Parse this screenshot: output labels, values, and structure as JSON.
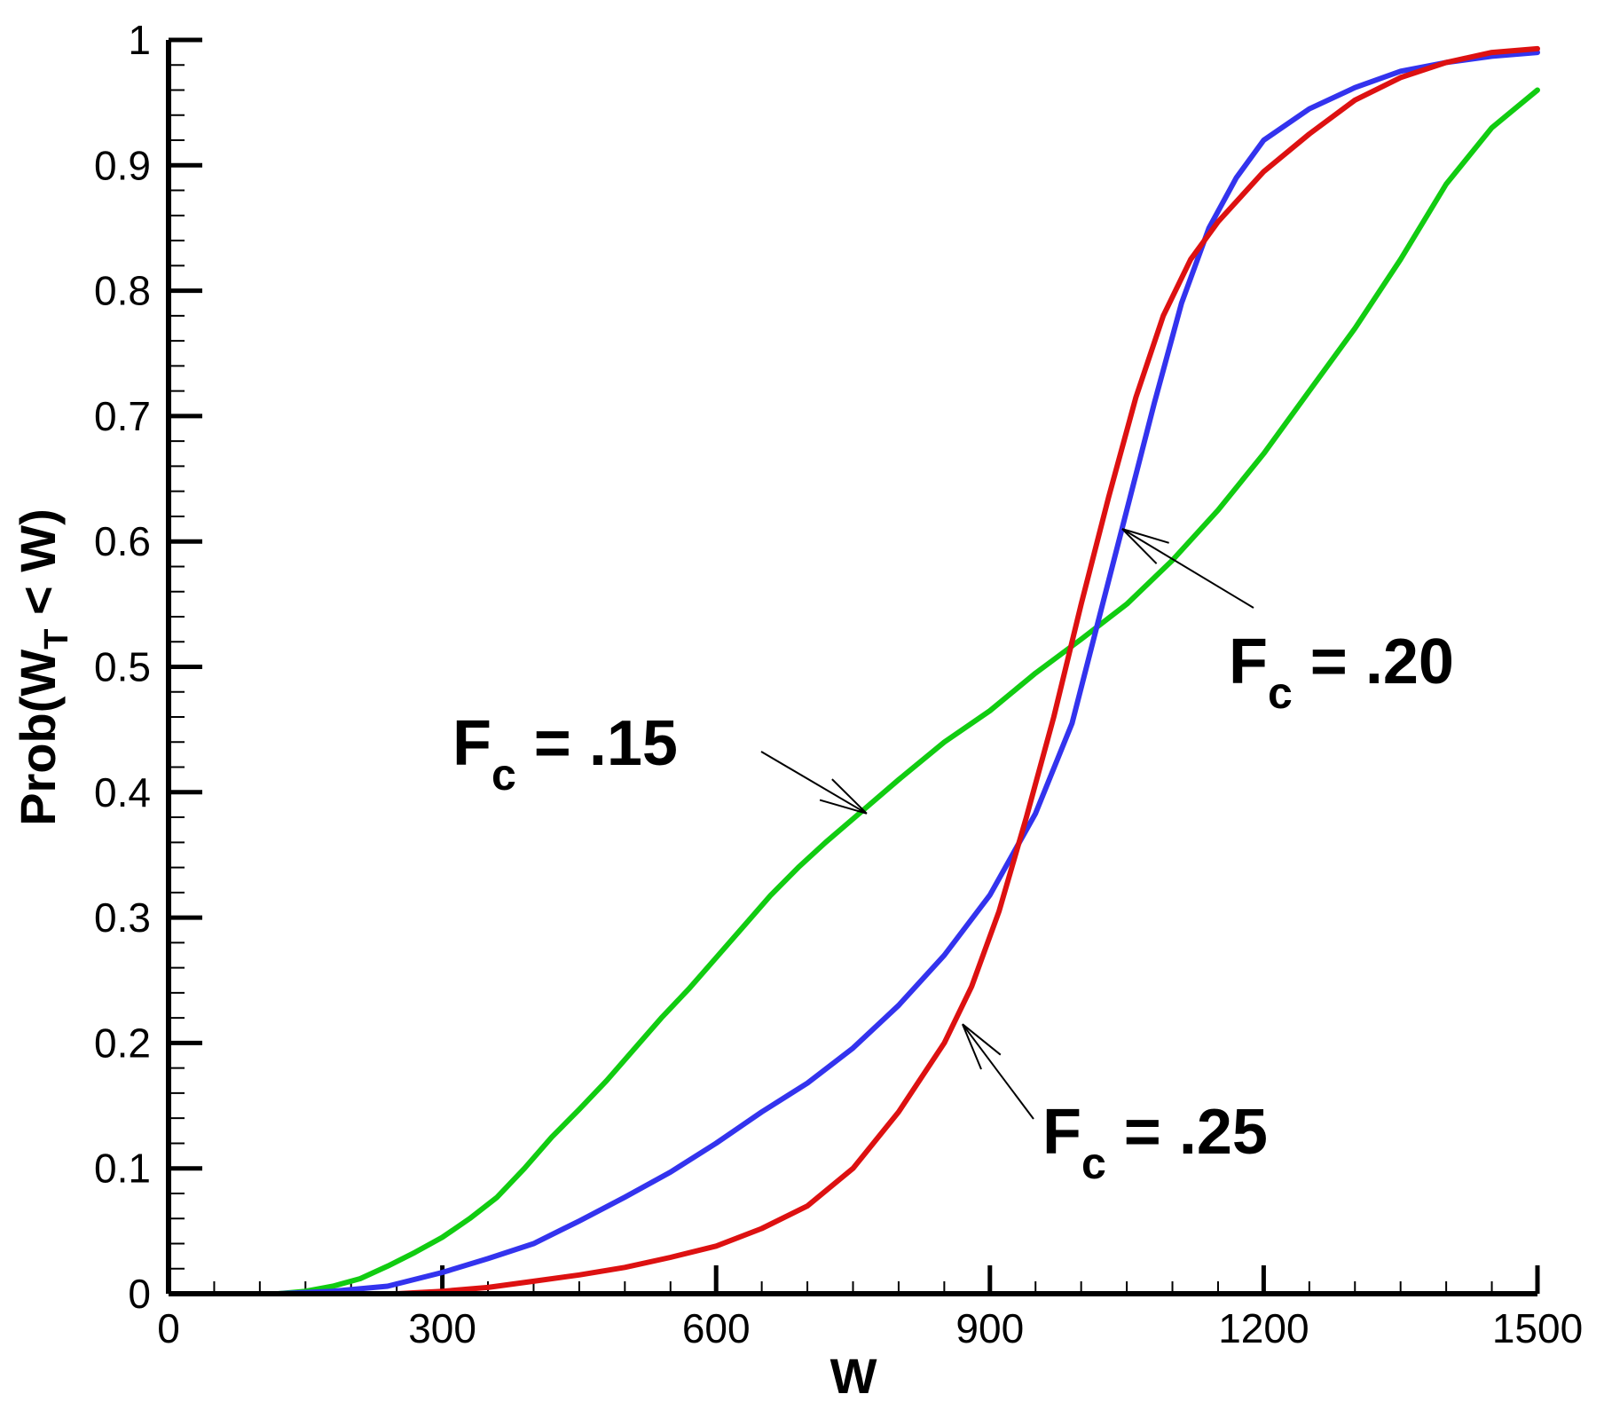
{
  "chart_data": {
    "type": "line",
    "title": "",
    "xlabel": "W",
    "ylabel": {
      "prefix": "Prob(W",
      "subscript": "T",
      "suffix": " < W)"
    },
    "xlim": [
      0,
      1500
    ],
    "ylim": [
      0,
      1
    ],
    "x_ticks": [
      "0",
      "300",
      "600",
      "900",
      "1200",
      "1500"
    ],
    "y_ticks": [
      "0",
      "0.1",
      "0.2",
      "0.3",
      "0.4",
      "0.5",
      "0.6",
      "0.7",
      "0.8",
      "0.9",
      "1"
    ],
    "grid": false,
    "series": [
      {
        "name": "Fc = .15",
        "color": "#11cc11",
        "points": [
          [
            120,
            0
          ],
          [
            150,
            0.002
          ],
          [
            180,
            0.006
          ],
          [
            210,
            0.012
          ],
          [
            240,
            0.022
          ],
          [
            270,
            0.033
          ],
          [
            300,
            0.045
          ],
          [
            330,
            0.06
          ],
          [
            360,
            0.077
          ],
          [
            390,
            0.1
          ],
          [
            420,
            0.125
          ],
          [
            450,
            0.147
          ],
          [
            480,
            0.17
          ],
          [
            510,
            0.195
          ],
          [
            540,
            0.22
          ],
          [
            570,
            0.243
          ],
          [
            600,
            0.268
          ],
          [
            630,
            0.293
          ],
          [
            660,
            0.318
          ],
          [
            690,
            0.34
          ],
          [
            720,
            0.36
          ],
          [
            760,
            0.385
          ],
          [
            800,
            0.41
          ],
          [
            850,
            0.44
          ],
          [
            900,
            0.465
          ],
          [
            950,
            0.495
          ],
          [
            1000,
            0.522
          ],
          [
            1050,
            0.55
          ],
          [
            1100,
            0.585
          ],
          [
            1150,
            0.625
          ],
          [
            1200,
            0.67
          ],
          [
            1250,
            0.72
          ],
          [
            1300,
            0.77
          ],
          [
            1350,
            0.825
          ],
          [
            1400,
            0.885
          ],
          [
            1450,
            0.93
          ],
          [
            1500,
            0.96
          ]
        ]
      },
      {
        "name": "Fc = .20",
        "color": "#3333ee",
        "points": [
          [
            120,
            0
          ],
          [
            180,
            0.002
          ],
          [
            240,
            0.006
          ],
          [
            300,
            0.017
          ],
          [
            350,
            0.028
          ],
          [
            400,
            0.04
          ],
          [
            450,
            0.058
          ],
          [
            500,
            0.077
          ],
          [
            550,
            0.097
          ],
          [
            600,
            0.12
          ],
          [
            650,
            0.145
          ],
          [
            700,
            0.168
          ],
          [
            750,
            0.196
          ],
          [
            800,
            0.23
          ],
          [
            850,
            0.27
          ],
          [
            900,
            0.318
          ],
          [
            950,
            0.383
          ],
          [
            990,
            0.455
          ],
          [
            1020,
            0.54
          ],
          [
            1050,
            0.625
          ],
          [
            1080,
            0.71
          ],
          [
            1110,
            0.79
          ],
          [
            1140,
            0.85
          ],
          [
            1170,
            0.89
          ],
          [
            1200,
            0.92
          ],
          [
            1250,
            0.945
          ],
          [
            1300,
            0.962
          ],
          [
            1350,
            0.975
          ],
          [
            1400,
            0.982
          ],
          [
            1450,
            0.987
          ],
          [
            1500,
            0.99
          ]
        ]
      },
      {
        "name": "Fc = .25",
        "color": "#dd1111",
        "points": [
          [
            250,
            0
          ],
          [
            300,
            0.002
          ],
          [
            350,
            0.005
          ],
          [
            400,
            0.01
          ],
          [
            450,
            0.015
          ],
          [
            500,
            0.021
          ],
          [
            550,
            0.029
          ],
          [
            600,
            0.038
          ],
          [
            650,
            0.052
          ],
          [
            700,
            0.07
          ],
          [
            750,
            0.1
          ],
          [
            800,
            0.145
          ],
          [
            850,
            0.2
          ],
          [
            880,
            0.245
          ],
          [
            910,
            0.305
          ],
          [
            940,
            0.38
          ],
          [
            970,
            0.46
          ],
          [
            1000,
            0.55
          ],
          [
            1030,
            0.635
          ],
          [
            1060,
            0.715
          ],
          [
            1090,
            0.78
          ],
          [
            1120,
            0.825
          ],
          [
            1150,
            0.855
          ],
          [
            1200,
            0.895
          ],
          [
            1250,
            0.925
          ],
          [
            1300,
            0.952
          ],
          [
            1350,
            0.97
          ],
          [
            1400,
            0.982
          ],
          [
            1450,
            0.99
          ],
          [
            1500,
            0.993
          ]
        ]
      }
    ],
    "annotations": [
      {
        "main": "F",
        "sub": "c",
        "value": " = .15",
        "arrow_to": [
          765,
          0.383
        ]
      },
      {
        "main": "F",
        "sub": "c",
        "value": " = .20",
        "arrow_to": [
          1045,
          0.61
        ]
      },
      {
        "main": "F",
        "sub": "c",
        "value": " = .25",
        "arrow_to": [
          870,
          0.215
        ]
      }
    ]
  }
}
